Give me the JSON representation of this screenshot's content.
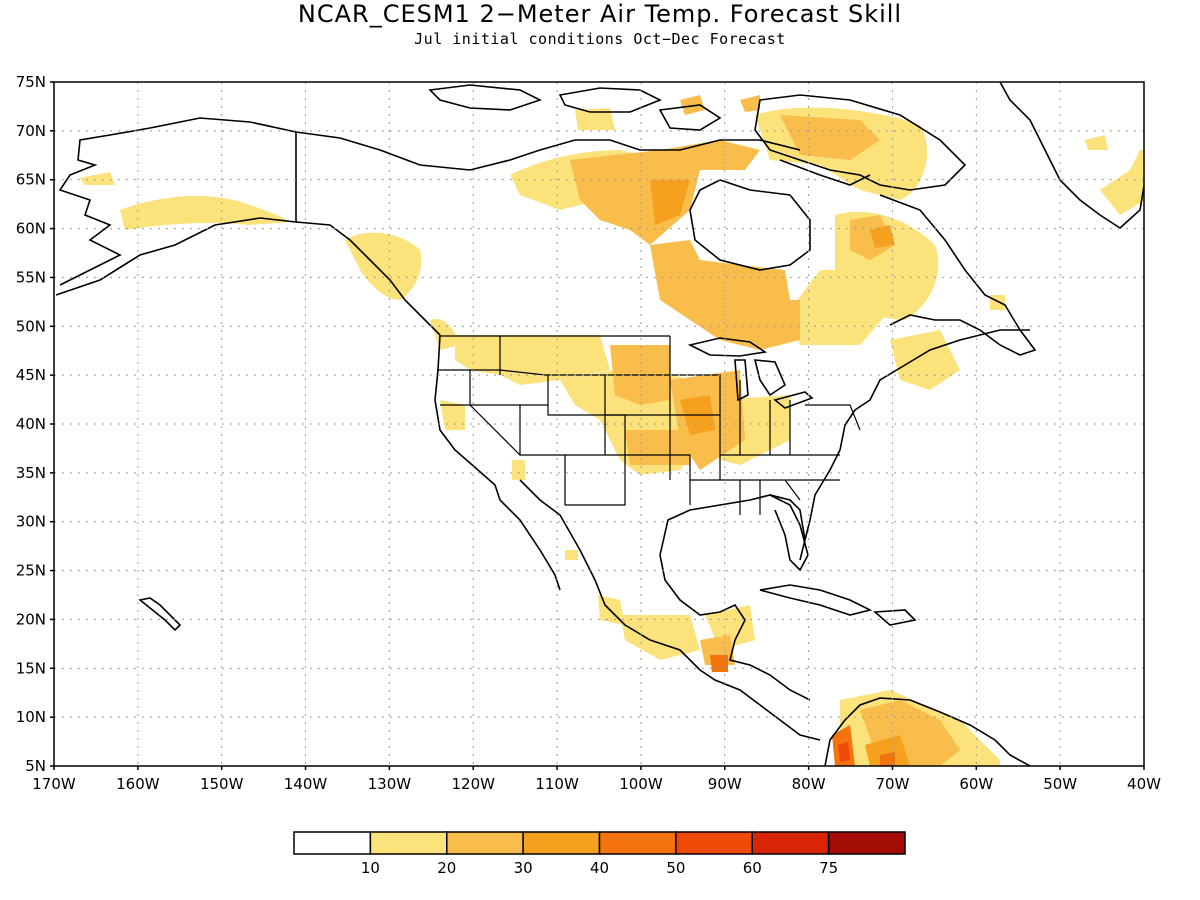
{
  "map": {
    "title": "NCAR_CESM1 2−Meter Air Temp. Forecast Skill",
    "subtitle": "Jul initial conditions  Oct−Dec Forecast",
    "lat_labels": [
      "75N",
      "70N",
      "65N",
      "60N",
      "55N",
      "50N",
      "45N",
      "40N",
      "35N",
      "30N",
      "25N",
      "20N",
      "15N",
      "10N",
      "5N"
    ],
    "lon_labels": [
      "170W",
      "160W",
      "150W",
      "140W",
      "130W",
      "120W",
      "110W",
      "100W",
      "90W",
      "80W",
      "70W",
      "60W",
      "50W",
      "40W"
    ],
    "lat_range": [
      5,
      75
    ],
    "lon_range": [
      -170,
      -40
    ],
    "grid": "dotted"
  },
  "colorbar": {
    "colors": [
      "#ffffff",
      "#fbe27a",
      "#f8bd4a",
      "#f6a11e",
      "#f3730d",
      "#ee4a06",
      "#d92506",
      "#a30b05"
    ],
    "labels": [
      "10",
      "20",
      "30",
      "40",
      "50",
      "60",
      "75"
    ]
  }
}
